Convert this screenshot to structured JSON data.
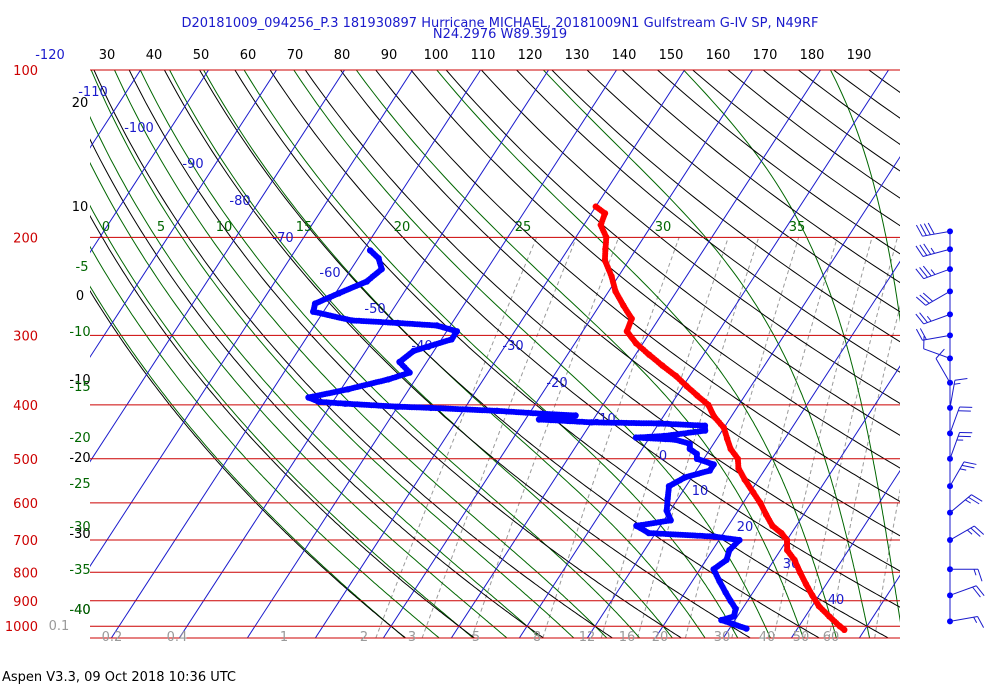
{
  "header": {
    "line1": "D20181009_094256_P.3 181930897 Hurricane MICHAEL, 20181009N1 Gulfstream G-IV SP, N49RF",
    "line2": "N24.2976 W89.3919"
  },
  "footer": "Aspen V3.3, 09 Oct 2018  10:36 UTC",
  "colors": {
    "temperature": "#ff0000",
    "dewpoint": "#0000ff",
    "isobar": "#cc0000",
    "isotherm": "#1a1acc",
    "dry_adiabat": "#000000",
    "moist_adiabat": "#006600",
    "mixing_ratio": "#9a9a9a",
    "top_scale": "#000000"
  },
  "chart_data": {
    "type": "skew-t log-p diagram",
    "top_scale_labels": [
      "-120",
      "30",
      "40",
      "50",
      "60",
      "70",
      "80",
      "90",
      "100",
      "110",
      "120",
      "130",
      "140",
      "150",
      "160",
      "170",
      "180",
      "190"
    ],
    "pressure_labels": [
      {
        "p": 100,
        "label": "100"
      },
      {
        "p": 200,
        "label": "200"
      },
      {
        "p": 300,
        "label": "300"
      },
      {
        "p": 400,
        "label": "400"
      },
      {
        "p": 500,
        "label": "500"
      },
      {
        "p": 600,
        "label": "600"
      },
      {
        "p": 700,
        "label": "700"
      },
      {
        "p": 800,
        "label": "800"
      },
      {
        "p": 900,
        "label": "900"
      },
      {
        "p": 1000,
        "label": "1000"
      }
    ],
    "isotherms_c": [
      -110,
      -100,
      -90,
      -80,
      -70,
      -60,
      -50,
      -40,
      -30,
      -20,
      -10,
      0,
      10,
      20,
      30,
      40
    ],
    "isotherm_labels": [
      {
        "t": -120,
        "text": "-120"
      },
      {
        "t": -110,
        "text": "-110"
      },
      {
        "t": -100,
        "text": "-100"
      },
      {
        "t": -90,
        "text": "-90"
      },
      {
        "t": -80,
        "text": "-80"
      },
      {
        "t": -70,
        "text": "-70"
      },
      {
        "t": -60,
        "text": "-60"
      },
      {
        "t": -50,
        "text": "-50"
      },
      {
        "t": -40,
        "text": "-40"
      },
      {
        "t": -30,
        "text": "-30"
      },
      {
        "t": -20,
        "text": "-20"
      },
      {
        "t": -10,
        "text": "-10"
      },
      {
        "t": 0,
        "text": "0"
      },
      {
        "t": 10,
        "text": "10"
      },
      {
        "t": 20,
        "text": "20"
      },
      {
        "t": 30,
        "text": "30"
      },
      {
        "t": 40,
        "text": "40"
      }
    ],
    "dry_adiabat_labels": [
      "20",
      "10",
      "0",
      "-10",
      "-20",
      "-30",
      "-40"
    ],
    "moist_adiabat_labels": [
      "0",
      "5",
      "10",
      "15",
      "20",
      "25",
      "30",
      "35",
      "-5",
      "-10",
      "-15",
      "-20",
      "-25",
      "-30",
      "-35",
      "-40"
    ],
    "mixing_ratio_labels": [
      "0.1",
      "0.2",
      "0.4",
      "1",
      "2",
      "3",
      "5",
      "8",
      "12",
      "16",
      "20",
      "30",
      "40",
      "50",
      "60"
    ],
    "temperature_profile": [
      {
        "p": 176,
        "t": -50.0
      },
      {
        "p": 181,
        "t": -48.0
      },
      {
        "p": 190,
        "t": -47.5
      },
      {
        "p": 200,
        "t": -45.5
      },
      {
        "p": 210,
        "t": -44.5
      },
      {
        "p": 220,
        "t": -43.5
      },
      {
        "p": 235,
        "t": -41.0
      },
      {
        "p": 250,
        "t": -39.0
      },
      {
        "p": 265,
        "t": -36.5
      },
      {
        "p": 280,
        "t": -34.0
      },
      {
        "p": 295,
        "t": -33.5
      },
      {
        "p": 310,
        "t": -31.0
      },
      {
        "p": 325,
        "t": -28.0
      },
      {
        "p": 340,
        "t": -25.0
      },
      {
        "p": 355,
        "t": -22.0
      },
      {
        "p": 370,
        "t": -19.5
      },
      {
        "p": 385,
        "t": -17.0
      },
      {
        "p": 400,
        "t": -14.5
      },
      {
        "p": 420,
        "t": -12.5
      },
      {
        "p": 440,
        "t": -10.0
      },
      {
        "p": 460,
        "t": -8.5
      },
      {
        "p": 480,
        "t": -7.0
      },
      {
        "p": 500,
        "t": -5.0
      },
      {
        "p": 520,
        "t": -4.0
      },
      {
        "p": 545,
        "t": -2.0
      },
      {
        "p": 575,
        "t": 0.5
      },
      {
        "p": 600,
        "t": 2.5
      },
      {
        "p": 630,
        "t": 4.5
      },
      {
        "p": 660,
        "t": 6.5
      },
      {
        "p": 680,
        "t": 8.5
      },
      {
        "p": 700,
        "t": 10.0
      },
      {
        "p": 730,
        "t": 11.0
      },
      {
        "p": 760,
        "t": 13.0
      },
      {
        "p": 800,
        "t": 15.0
      },
      {
        "p": 840,
        "t": 17.0
      },
      {
        "p": 880,
        "t": 19.0
      },
      {
        "p": 920,
        "t": 21.0
      },
      {
        "p": 960,
        "t": 23.5
      },
      {
        "p": 1000,
        "t": 26.0
      },
      {
        "p": 1015,
        "t": 27.0
      }
    ],
    "dewpoint_profile": [
      {
        "p": 211,
        "t": -79.0
      },
      {
        "p": 218,
        "t": -77.0
      },
      {
        "p": 228,
        "t": -75.5
      },
      {
        "p": 240,
        "t": -76.5
      },
      {
        "p": 252,
        "t": -79.5
      },
      {
        "p": 263,
        "t": -82.0
      },
      {
        "p": 272,
        "t": -81.5
      },
      {
        "p": 282,
        "t": -75.0
      },
      {
        "p": 285,
        "t": -68.0
      },
      {
        "p": 288,
        "t": -62.0
      },
      {
        "p": 295,
        "t": -58.5
      },
      {
        "p": 305,
        "t": -58.5
      },
      {
        "p": 320,
        "t": -63.0
      },
      {
        "p": 335,
        "t": -64.0
      },
      {
        "p": 350,
        "t": -61.5
      },
      {
        "p": 360,
        "t": -64.0
      },
      {
        "p": 375,
        "t": -69.0
      },
      {
        "p": 388,
        "t": -74.0
      },
      {
        "p": 395,
        "t": -72.0
      },
      {
        "p": 398,
        "t": -68.0
      },
      {
        "p": 403,
        "t": -60.0
      },
      {
        "p": 405,
        "t": -55.0
      },
      {
        "p": 410,
        "t": -45.0
      },
      {
        "p": 415,
        "t": -38.0
      },
      {
        "p": 418,
        "t": -33.0
      },
      {
        "p": 425,
        "t": -38.0
      },
      {
        "p": 430,
        "t": -30.0
      },
      {
        "p": 432,
        "t": -20.0
      },
      {
        "p": 436,
        "t": -13.0
      },
      {
        "p": 445,
        "t": -12.5
      },
      {
        "p": 455,
        "t": -18.0
      },
      {
        "p": 458,
        "t": -22.0
      },
      {
        "p": 462,
        "t": -16.0
      },
      {
        "p": 470,
        "t": -13.5
      },
      {
        "p": 480,
        "t": -13.0
      },
      {
        "p": 490,
        "t": -11.5
      },
      {
        "p": 500,
        "t": -11.0
      },
      {
        "p": 512,
        "t": -8.0
      },
      {
        "p": 525,
        "t": -8.0
      },
      {
        "p": 540,
        "t": -11.0
      },
      {
        "p": 560,
        "t": -12.5
      },
      {
        "p": 590,
        "t": -11.5
      },
      {
        "p": 620,
        "t": -10.5
      },
      {
        "p": 645,
        "t": -9.0
      },
      {
        "p": 660,
        "t": -13.5
      },
      {
        "p": 680,
        "t": -11.0
      },
      {
        "p": 690,
        "t": -1.0
      },
      {
        "p": 700,
        "t": 3.0
      },
      {
        "p": 730,
        "t": 2.5
      },
      {
        "p": 760,
        "t": 3.0
      },
      {
        "p": 790,
        "t": 2.0
      },
      {
        "p": 830,
        "t": 4.0
      },
      {
        "p": 870,
        "t": 6.0
      },
      {
        "p": 900,
        "t": 7.5
      },
      {
        "p": 930,
        "t": 9.0
      },
      {
        "p": 960,
        "t": 9.5
      },
      {
        "p": 975,
        "t": 8.0
      },
      {
        "p": 990,
        "t": 10.0
      },
      {
        "p": 1010,
        "t": 12.5
      }
    ],
    "wind_barbs_pressure": [
      195,
      210,
      228,
      250,
      275,
      300,
      330,
      365,
      405,
      450,
      500,
      560,
      625,
      700,
      790,
      880,
      980
    ],
    "wind_barbs": [
      {
        "p": 195,
        "dir": 260,
        "spd": 40
      },
      {
        "p": 210,
        "dir": 255,
        "spd": 35
      },
      {
        "p": 228,
        "dir": 250,
        "spd": 35
      },
      {
        "p": 250,
        "dir": 240,
        "spd": 30
      },
      {
        "p": 275,
        "dir": 250,
        "spd": 25
      },
      {
        "p": 300,
        "dir": 260,
        "spd": 20
      },
      {
        "p": 330,
        "dir": 290,
        "spd": 10
      },
      {
        "p": 365,
        "dir": 330,
        "spd": 10
      },
      {
        "p": 405,
        "dir": 10,
        "spd": 15
      },
      {
        "p": 450,
        "dir": 20,
        "spd": 20
      },
      {
        "p": 500,
        "dir": 20,
        "spd": 25
      },
      {
        "p": 560,
        "dir": 30,
        "spd": 25
      },
      {
        "p": 625,
        "dir": 50,
        "spd": 25
      },
      {
        "p": 700,
        "dir": 60,
        "spd": 25
      },
      {
        "p": 790,
        "dir": 90,
        "spd": 15
      },
      {
        "p": 880,
        "dir": 70,
        "spd": 20
      },
      {
        "p": 980,
        "dir": 80,
        "spd": 15
      }
    ]
  }
}
